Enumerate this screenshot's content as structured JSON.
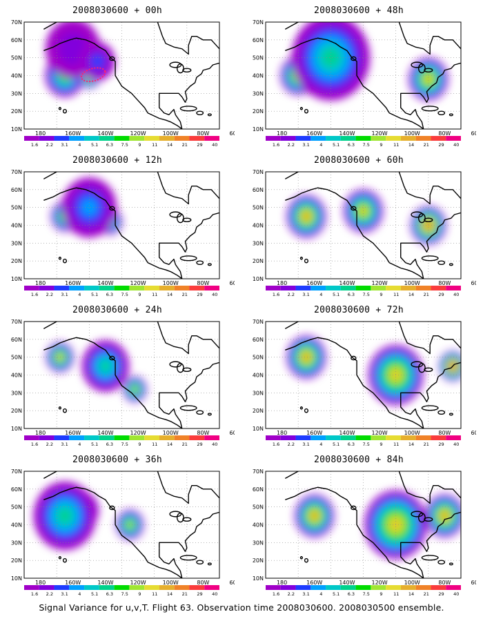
{
  "caption": "Signal Variance for u,v,T. Flight 63. Observation time 2008030600. 2008030500 ensemble.",
  "y_tick_labels": [
    "70N",
    "60N",
    "50N",
    "40N",
    "30N",
    "20N",
    "10N"
  ],
  "x_tick_labels": [
    "180",
    "160W",
    "140W",
    "120W",
    "100W",
    "80W",
    "60W"
  ],
  "colorbar": {
    "labels": [
      "1.6",
      "2.2",
      "3.1",
      "4",
      "5.1",
      "6.3",
      "7.5",
      "9",
      "11",
      "14",
      "21",
      "29",
      "40"
    ],
    "colors": [
      "#a000c8",
      "#8200dc",
      "#1e3cff",
      "#00a0ff",
      "#00c8c8",
      "#00d28c",
      "#00dc00",
      "#a0e632",
      "#e6dc32",
      "#e6af2d",
      "#f08228",
      "#fa3c3c",
      "#f00082"
    ]
  },
  "chart_data": [
    {
      "type": "heatmap",
      "title": "2008030600 + 00h",
      "base_time": "2008030600",
      "lead_hours": 0,
      "xlim": [
        "180",
        "60W"
      ],
      "ylim": [
        "10N",
        "70N"
      ],
      "colorbar_values": [
        1.6,
        2.2,
        3.1,
        4,
        5.1,
        6.3,
        7.5,
        9,
        11,
        14,
        21,
        29,
        40
      ],
      "features": [
        {
          "lon": -155,
          "lat": 40,
          "radius_deg": 10,
          "level": 7
        },
        {
          "lon": -140,
          "lat": 40,
          "radius_deg": 6,
          "level": 10
        },
        {
          "lon": -150,
          "lat": 55,
          "radius_deg": 14,
          "level": 1
        },
        {
          "lon": -135,
          "lat": 48,
          "radius_deg": 9,
          "level": 2
        }
      ],
      "observations": {
        "color": "#ff2070",
        "lon_range": [
          -145,
          -130
        ],
        "lat_range": [
          37,
          44
        ]
      }
    },
    {
      "type": "heatmap",
      "title": "2008030600 + 48h",
      "base_time": "2008030600",
      "lead_hours": 48,
      "xlim": [
        "180",
        "60W"
      ],
      "ylim": [
        "10N",
        "70N"
      ],
      "colorbar_values": [
        1.6,
        2.2,
        3.1,
        4,
        5.1,
        6.3,
        7.5,
        9,
        11,
        14,
        21,
        29,
        40
      ],
      "features": [
        {
          "lon": -160,
          "lat": 40,
          "radius_deg": 9,
          "level": 9
        },
        {
          "lon": -130,
          "lat": 47,
          "radius_deg": 9,
          "level": 9
        },
        {
          "lon": -80,
          "lat": 38,
          "radius_deg": 10,
          "level": 9
        },
        {
          "lon": -140,
          "lat": 50,
          "radius_deg": 20,
          "level": 5
        }
      ],
      "observations": null
    },
    {
      "type": "heatmap",
      "title": "2008030600 + 12h",
      "base_time": "2008030600",
      "lead_hours": 12,
      "xlim": [
        "180",
        "60W"
      ],
      "ylim": [
        "10N",
        "70N"
      ],
      "colorbar_values": [
        1.6,
        2.2,
        3.1,
        4,
        5.1,
        6.3,
        7.5,
        9,
        11,
        14,
        21,
        29,
        40
      ],
      "features": [
        {
          "lon": -155,
          "lat": 45,
          "radius_deg": 7,
          "level": 8
        },
        {
          "lon": -127,
          "lat": 42,
          "radius_deg": 6,
          "level": 7
        },
        {
          "lon": -140,
          "lat": 50,
          "radius_deg": 14,
          "level": 3
        }
      ],
      "observations": null
    },
    {
      "type": "heatmap",
      "title": "2008030600 + 60h",
      "base_time": "2008030600",
      "lead_hours": 60,
      "xlim": [
        "180",
        "60W"
      ],
      "ylim": [
        "10N",
        "70N"
      ],
      "colorbar_values": [
        1.6,
        2.2,
        3.1,
        4,
        5.1,
        6.3,
        7.5,
        9,
        11,
        14,
        21,
        29,
        40
      ],
      "features": [
        {
          "lon": -155,
          "lat": 45,
          "radius_deg": 10,
          "level": 10
        },
        {
          "lon": -120,
          "lat": 48,
          "radius_deg": 10,
          "level": 9
        },
        {
          "lon": -80,
          "lat": 40,
          "radius_deg": 9,
          "level": 11
        }
      ],
      "observations": null
    },
    {
      "type": "heatmap",
      "title": "2008030600 + 24h",
      "base_time": "2008030600",
      "lead_hours": 24,
      "xlim": [
        "180",
        "60W"
      ],
      "ylim": [
        "10N",
        "70N"
      ],
      "colorbar_values": [
        1.6,
        2.2,
        3.1,
        4,
        5.1,
        6.3,
        7.5,
        9,
        11,
        14,
        21,
        29,
        40
      ],
      "features": [
        {
          "lon": -158,
          "lat": 50,
          "radius_deg": 7,
          "level": 9
        },
        {
          "lon": -112,
          "lat": 32,
          "radius_deg": 6,
          "level": 8
        },
        {
          "lon": -130,
          "lat": 45,
          "radius_deg": 12,
          "level": 5
        }
      ],
      "observations": null
    },
    {
      "type": "heatmap",
      "title": "2008030600 + 72h",
      "base_time": "2008030600",
      "lead_hours": 72,
      "xlim": [
        "180",
        "60W"
      ],
      "ylim": [
        "10N",
        "70N"
      ],
      "colorbar_values": [
        1.6,
        2.2,
        3.1,
        4,
        5.1,
        6.3,
        7.5,
        9,
        11,
        14,
        21,
        29,
        40
      ],
      "features": [
        {
          "lon": -155,
          "lat": 50,
          "radius_deg": 10,
          "level": 10
        },
        {
          "lon": -100,
          "lat": 40,
          "radius_deg": 14,
          "level": 9
        },
        {
          "lon": -65,
          "lat": 45,
          "radius_deg": 7,
          "level": 12
        }
      ],
      "observations": null
    },
    {
      "type": "heatmap",
      "title": "2008030600 + 36h",
      "base_time": "2008030600",
      "lead_hours": 36,
      "xlim": [
        "180",
        "60W"
      ],
      "ylim": [
        "10N",
        "70N"
      ],
      "colorbar_values": [
        1.6,
        2.2,
        3.1,
        4,
        5.1,
        6.3,
        7.5,
        9,
        11,
        14,
        21,
        29,
        40
      ],
      "features": [
        {
          "lon": -145,
          "lat": 48,
          "radius_deg": 9,
          "level": 10
        },
        {
          "lon": -115,
          "lat": 40,
          "radius_deg": 7,
          "level": 8
        },
        {
          "lon": -155,
          "lat": 45,
          "radius_deg": 16,
          "level": 5
        }
      ],
      "observations": null
    },
    {
      "type": "heatmap",
      "title": "2008030600 + 84h",
      "base_time": "2008030600",
      "lead_hours": 84,
      "xlim": [
        "180",
        "60W"
      ],
      "ylim": [
        "10N",
        "70N"
      ],
      "colorbar_values": [
        1.6,
        2.2,
        3.1,
        4,
        5.1,
        6.3,
        7.5,
        9,
        11,
        14,
        21,
        29,
        40
      ],
      "features": [
        {
          "lon": -150,
          "lat": 45,
          "radius_deg": 10,
          "level": 10
        },
        {
          "lon": -100,
          "lat": 40,
          "radius_deg": 16,
          "level": 9
        },
        {
          "lon": -70,
          "lat": 45,
          "radius_deg": 10,
          "level": 10
        }
      ],
      "observations": null
    }
  ]
}
